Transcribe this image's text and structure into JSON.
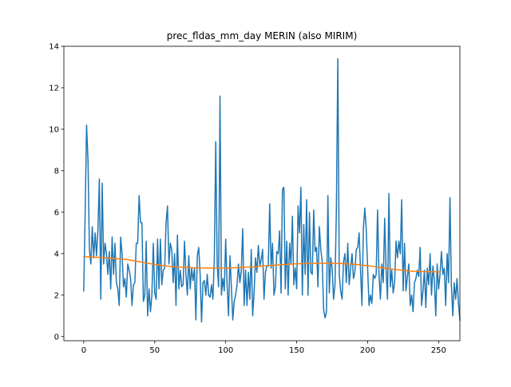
{
  "chart_data": {
    "type": "line",
    "title": "prec_fldas_mm_day MERIN (also MIRIM)",
    "xlabel": "",
    "ylabel": "",
    "xlim": [
      -14,
      265
    ],
    "ylim": [
      -0.2,
      14
    ],
    "x_ticks": [
      0,
      50,
      100,
      150,
      200,
      250
    ],
    "y_ticks": [
      0,
      2,
      4,
      6,
      8,
      10,
      12,
      14
    ],
    "grid": false,
    "legend": "none",
    "colors": {
      "series_1": "#1f77b4",
      "series_2": "#ff7f0e",
      "axes": "#000000",
      "background": "#ffffff"
    },
    "series": [
      {
        "name": "series_1",
        "x_start": 0,
        "x_step": 1,
        "values": [
          2.2,
          6.0,
          10.2,
          8.5,
          4.2,
          3.5,
          5.3,
          3.8,
          5.0,
          3.9,
          5.2,
          7.6,
          1.8,
          7.4,
          3.5,
          4.5,
          4.0,
          3.0,
          4.1,
          2.3,
          4.8,
          3.0,
          4.5,
          2.6,
          2.3,
          1.5,
          4.8,
          4.0,
          2.4,
          2.8,
          1.9,
          3.5,
          3.2,
          2.8,
          1.5,
          2.5,
          2.6,
          4.5,
          4.5,
          6.8,
          5.5,
          5.5,
          1.7,
          2.0,
          4.6,
          1.0,
          2.3,
          1.2,
          2.0,
          4.5,
          2.1,
          1.8,
          4.7,
          2.3,
          4.7,
          2.5,
          3.2,
          3.3,
          5.5,
          6.3,
          3.5,
          4.5,
          4.2,
          2.6,
          4.0,
          1.5,
          4.9,
          2.3,
          3.2,
          2.4,
          2.5,
          4.6,
          3.0,
          2.0,
          3.9,
          2.3,
          3.3,
          2.7,
          3.3,
          0.8,
          3.9,
          4.3,
          3.0,
          0.7,
          2.6,
          2.7,
          2.0,
          3.0,
          2.0,
          1.9,
          2.5,
          1.8,
          3.8,
          9.4,
          3.5,
          2.4,
          11.6,
          2.0,
          2.8,
          2.2,
          4.7,
          2.5,
          1.0,
          3.9,
          2.4,
          0.8,
          1.7,
          2.0,
          2.5,
          3.5,
          2.6,
          3.2,
          5.2,
          1.5,
          3.2,
          1.5,
          3.1,
          1.8,
          4.2,
          1.0,
          2.1,
          3.8,
          3.1,
          4.4,
          3.4,
          3.7,
          4.2,
          1.8,
          3.1,
          3.4,
          3.4,
          6.4,
          3.3,
          4.5,
          2.0,
          2.4,
          4.1,
          4.0,
          5.1,
          2.1,
          7.1,
          7.2,
          2.3,
          4.6,
          2.0,
          4.5,
          3.5,
          5.8,
          2.5,
          3.3,
          2.3,
          6.3,
          5.0,
          7.2,
          2.0,
          5.4,
          3.0,
          6.6,
          2.0,
          6.0,
          3.1,
          3.0,
          6.1,
          4.1,
          4.3,
          2.4,
          5.3,
          4.2,
          3.6,
          1.3,
          0.9,
          1.2,
          6.8,
          2.1,
          3.8,
          3.3,
          1.8,
          2.5,
          6.2,
          13.4,
          3.0,
          2.2,
          1.8,
          3.6,
          4.0,
          2.6,
          4.5,
          2.5,
          3.3,
          4.0,
          2.8,
          3.1,
          4.2,
          4.3,
          5.0,
          3.2,
          1.5,
          5.2,
          6.2,
          5.2,
          3.3,
          1.5,
          2.0,
          1.6,
          3.0,
          2.8,
          3.0,
          6.1,
          3.0,
          1.8,
          3.5,
          2.6,
          5.7,
          3.2,
          1.8,
          6.9,
          2.4,
          3.2,
          2.1,
          2.6,
          4.6,
          3.8,
          4.6,
          4.0,
          6.6,
          2.2,
          4.5,
          2.2,
          2.9,
          3.5,
          1.5,
          2.0,
          1.2,
          2.6,
          2.8,
          3.2,
          2.9,
          4.3,
          1.5,
          2.2,
          3.2,
          1.4,
          3.3,
          2.5,
          4.0,
          2.0,
          3.4,
          2.7,
          1.0,
          3.5,
          2.3,
          3.0,
          4.1,
          3.0,
          3.3,
          1.5,
          4.0,
          2.6,
          6.7,
          2.5,
          1.0,
          2.6,
          1.8,
          2.8,
          1.6,
          0.8
        ]
      },
      {
        "name": "series_2",
        "x": [
          0,
          10,
          20,
          30,
          40,
          50,
          60,
          70,
          80,
          90,
          100,
          110,
          120,
          130,
          140,
          150,
          160,
          170,
          180,
          190,
          200,
          210,
          220,
          230,
          240,
          251
        ],
        "values": [
          3.85,
          3.82,
          3.78,
          3.72,
          3.6,
          3.48,
          3.39,
          3.34,
          3.31,
          3.3,
          3.3,
          3.33,
          3.37,
          3.42,
          3.47,
          3.51,
          3.53,
          3.54,
          3.53,
          3.49,
          3.42,
          3.32,
          3.23,
          3.16,
          3.13,
          3.12
        ]
      }
    ]
  }
}
